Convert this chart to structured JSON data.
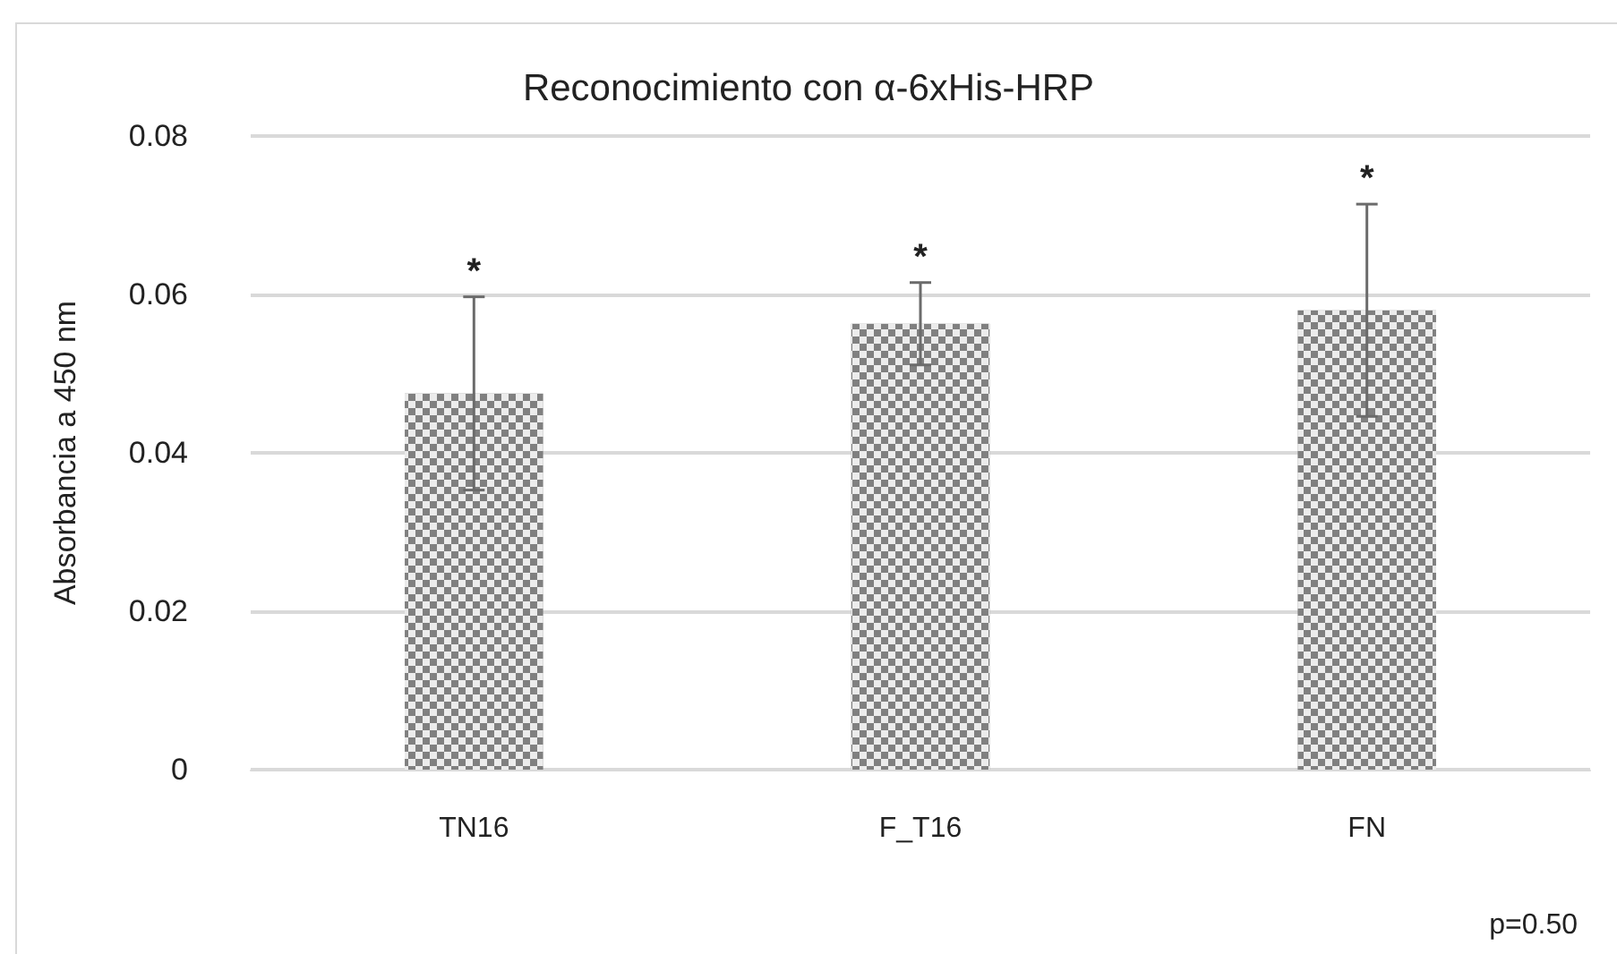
{
  "chart_data": {
    "type": "bar",
    "title": "Reconocimiento con α-6xHis-HRP",
    "ylabel": "Absorbancia a 450 nm",
    "categories": [
      "TN16",
      "F_T16",
      "FN"
    ],
    "values": [
      0.0475,
      0.0563,
      0.058
    ],
    "errors": [
      0.0122,
      0.0052,
      0.0134
    ],
    "color": "#808080",
    "ylim": [
      0,
      0.08
    ],
    "yticks": [
      0,
      0.02,
      0.04,
      0.06,
      0.08
    ],
    "grid": "y",
    "annotations": [
      {
        "text": "*",
        "x": "TN16",
        "y": 0.0597
      },
      {
        "text": "*",
        "x": "F_T16",
        "y": 0.0615
      },
      {
        "text": "*",
        "x": "FN",
        "y": 0.0714
      },
      "p=0.50"
    ]
  }
}
